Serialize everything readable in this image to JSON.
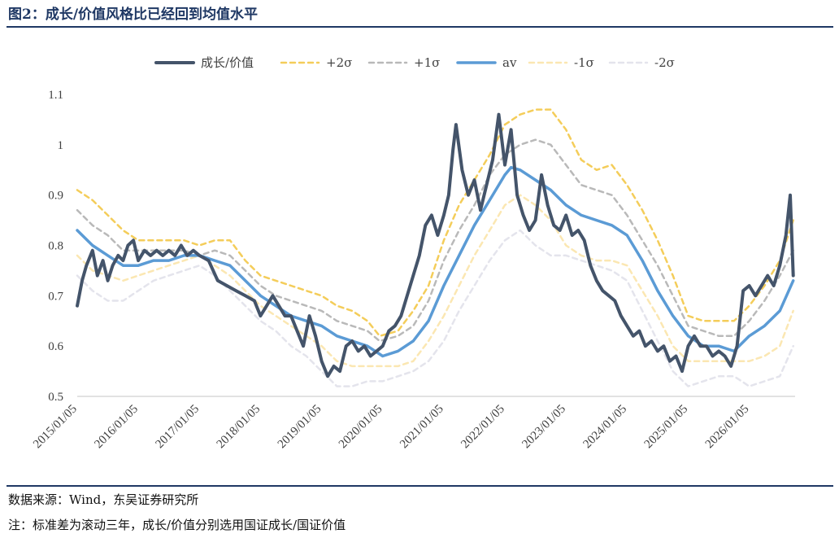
{
  "figure": {
    "title": "图2：成长/价值风格比已经回到均值水平",
    "source_note": "数据来源：Wind，东吴证券研究所",
    "footnote": "注：标准差为滚动三年，成长/价值分别选用国证成长/国证价值"
  },
  "chart_data": {
    "type": "line",
    "title": "",
    "xlabel": "",
    "ylabel": "",
    "ylim": [
      0.5,
      1.1
    ],
    "yticks": [
      "0.5",
      "0.6",
      "0.7",
      "0.8",
      "0.9",
      "1",
      "1.1"
    ],
    "xlim": [
      2015.0,
      2026.75
    ],
    "xticks": [
      {
        "label": "2015/01/05",
        "t": 2015.0
      },
      {
        "label": "2016/01/05",
        "t": 2016.0
      },
      {
        "label": "2017/01/05",
        "t": 2017.0
      },
      {
        "label": "2018/01/05",
        "t": 2018.0
      },
      {
        "label": "2019/01/05",
        "t": 2019.0
      },
      {
        "label": "2020/01/05",
        "t": 2020.0
      },
      {
        "label": "2021/01/05",
        "t": 2021.0
      },
      {
        "label": "2022/01/05",
        "t": 2022.0
      },
      {
        "label": "2023/01/05",
        "t": 2023.0
      },
      {
        "label": "2024/01/05",
        "t": 2024.0
      },
      {
        "label": "2025/01/05",
        "t": 2025.0
      },
      {
        "label": "2026/01/05",
        "t": 2026.0
      }
    ],
    "grid": false,
    "legend_position": "top",
    "series": [
      {
        "name": "成长/价值",
        "color": "#44546a",
        "dash": "solid",
        "width": 4,
        "x": [
          2015.0,
          2015.08,
          2015.15,
          2015.25,
          2015.33,
          2015.42,
          2015.5,
          2015.58,
          2015.67,
          2015.75,
          2015.83,
          2015.92,
          2016.0,
          2016.1,
          2016.2,
          2016.3,
          2016.4,
          2016.5,
          2016.6,
          2016.7,
          2016.8,
          2016.9,
          2017.0,
          2017.15,
          2017.3,
          2017.45,
          2017.6,
          2017.75,
          2017.9,
          2018.0,
          2018.1,
          2018.2,
          2018.3,
          2018.4,
          2018.5,
          2018.6,
          2018.7,
          2018.8,
          2018.9,
          2019.0,
          2019.1,
          2019.2,
          2019.3,
          2019.4,
          2019.5,
          2019.6,
          2019.7,
          2019.8,
          2019.9,
          2020.0,
          2020.1,
          2020.2,
          2020.3,
          2020.4,
          2020.5,
          2020.6,
          2020.7,
          2020.8,
          2020.9,
          2021.0,
          2021.08,
          2021.15,
          2021.2,
          2021.3,
          2021.4,
          2021.5,
          2021.6,
          2021.7,
          2021.8,
          2021.9,
          2022.0,
          2022.1,
          2022.2,
          2022.3,
          2022.4,
          2022.5,
          2022.6,
          2022.7,
          2022.8,
          2022.9,
          2023.0,
          2023.1,
          2023.2,
          2023.3,
          2023.4,
          2023.5,
          2023.6,
          2023.7,
          2023.8,
          2023.9,
          2024.0,
          2024.1,
          2024.2,
          2024.3,
          2024.4,
          2024.5,
          2024.6,
          2024.7,
          2024.8,
          2024.9,
          2025.0,
          2025.1,
          2025.2,
          2025.3,
          2025.4,
          2025.5,
          2025.6,
          2025.7,
          2025.8,
          2025.9,
          2026.0,
          2026.1,
          2026.2,
          2026.3,
          2026.4,
          2026.5,
          2026.6,
          2026.67,
          2026.72
        ],
        "y": [
          0.68,
          0.73,
          0.76,
          0.79,
          0.74,
          0.77,
          0.73,
          0.76,
          0.78,
          0.77,
          0.8,
          0.81,
          0.77,
          0.79,
          0.78,
          0.79,
          0.78,
          0.79,
          0.78,
          0.8,
          0.78,
          0.79,
          0.78,
          0.77,
          0.73,
          0.72,
          0.71,
          0.7,
          0.69,
          0.66,
          0.68,
          0.7,
          0.68,
          0.66,
          0.66,
          0.63,
          0.6,
          0.66,
          0.62,
          0.57,
          0.54,
          0.56,
          0.55,
          0.6,
          0.61,
          0.59,
          0.6,
          0.58,
          0.59,
          0.6,
          0.63,
          0.64,
          0.66,
          0.7,
          0.74,
          0.78,
          0.84,
          0.86,
          0.82,
          0.86,
          0.9,
          0.99,
          1.04,
          0.95,
          0.9,
          0.93,
          0.87,
          0.92,
          0.97,
          1.06,
          0.96,
          1.03,
          0.9,
          0.86,
          0.83,
          0.85,
          0.94,
          0.88,
          0.84,
          0.83,
          0.86,
          0.82,
          0.83,
          0.81,
          0.76,
          0.73,
          0.71,
          0.7,
          0.69,
          0.66,
          0.64,
          0.62,
          0.63,
          0.6,
          0.61,
          0.59,
          0.6,
          0.57,
          0.58,
          0.55,
          0.6,
          0.62,
          0.6,
          0.6,
          0.58,
          0.59,
          0.58,
          0.56,
          0.6,
          0.71,
          0.72,
          0.7,
          0.72,
          0.74,
          0.72,
          0.76,
          0.82,
          0.9,
          0.74
        ]
      },
      {
        "name": "+2σ",
        "color": "#f4cd5a",
        "dash": "6,5",
        "width": 2.5,
        "x": [
          2015.0,
          2015.25,
          2015.5,
          2015.75,
          2016.0,
          2016.25,
          2016.5,
          2016.75,
          2017.0,
          2017.25,
          2017.5,
          2017.75,
          2018.0,
          2018.25,
          2018.5,
          2018.75,
          2019.0,
          2019.25,
          2019.5,
          2019.75,
          2019.95,
          2020.25,
          2020.5,
          2020.75,
          2021.0,
          2021.25,
          2021.5,
          2021.75,
          2022.0,
          2022.25,
          2022.5,
          2022.75,
          2023.0,
          2023.25,
          2023.5,
          2023.75,
          2024.0,
          2024.25,
          2024.5,
          2024.75,
          2025.0,
          2025.25,
          2025.5,
          2025.75,
          2026.0,
          2026.25,
          2026.5,
          2026.72
        ],
        "y": [
          0.91,
          0.89,
          0.86,
          0.83,
          0.81,
          0.81,
          0.81,
          0.81,
          0.8,
          0.81,
          0.81,
          0.77,
          0.74,
          0.73,
          0.72,
          0.71,
          0.7,
          0.68,
          0.67,
          0.65,
          0.62,
          0.63,
          0.67,
          0.72,
          0.81,
          0.88,
          0.93,
          0.98,
          1.04,
          1.06,
          1.07,
          1.07,
          1.03,
          0.97,
          0.95,
          0.96,
          0.92,
          0.87,
          0.81,
          0.74,
          0.66,
          0.65,
          0.65,
          0.65,
          0.68,
          0.72,
          0.77,
          0.85
        ]
      },
      {
        "name": "+1σ",
        "color": "#b9b9b9",
        "dash": "6,5",
        "width": 2.5,
        "x": [
          2015.0,
          2015.25,
          2015.5,
          2015.75,
          2016.0,
          2016.25,
          2016.5,
          2016.75,
          2017.0,
          2017.25,
          2017.5,
          2017.75,
          2018.0,
          2018.25,
          2018.5,
          2018.75,
          2019.0,
          2019.25,
          2019.5,
          2019.75,
          2019.95,
          2020.25,
          2020.5,
          2020.75,
          2021.0,
          2021.25,
          2021.5,
          2021.75,
          2022.0,
          2022.25,
          2022.5,
          2022.75,
          2023.0,
          2023.25,
          2023.5,
          2023.75,
          2024.0,
          2024.25,
          2024.5,
          2024.75,
          2025.0,
          2025.25,
          2025.5,
          2025.75,
          2026.0,
          2026.25,
          2026.5,
          2026.72
        ],
        "y": [
          0.87,
          0.84,
          0.82,
          0.79,
          0.79,
          0.79,
          0.79,
          0.79,
          0.78,
          0.79,
          0.78,
          0.75,
          0.72,
          0.7,
          0.69,
          0.68,
          0.67,
          0.65,
          0.64,
          0.63,
          0.61,
          0.62,
          0.64,
          0.69,
          0.77,
          0.83,
          0.88,
          0.94,
          0.98,
          1.0,
          1.01,
          1.0,
          0.96,
          0.92,
          0.91,
          0.9,
          0.86,
          0.81,
          0.76,
          0.7,
          0.64,
          0.63,
          0.62,
          0.62,
          0.65,
          0.69,
          0.74,
          0.79
        ]
      },
      {
        "name": "av",
        "color": "#5b9bd5",
        "dash": "solid",
        "width": 3.5,
        "x": [
          2015.0,
          2015.25,
          2015.5,
          2015.75,
          2016.0,
          2016.25,
          2016.5,
          2016.75,
          2017.0,
          2017.25,
          2017.5,
          2017.75,
          2018.0,
          2018.25,
          2018.5,
          2018.75,
          2019.0,
          2019.25,
          2019.5,
          2019.75,
          2020.0,
          2020.25,
          2020.5,
          2020.75,
          2021.0,
          2021.25,
          2021.5,
          2021.75,
          2022.0,
          2022.1,
          2022.25,
          2022.5,
          2022.75,
          2023.0,
          2023.25,
          2023.5,
          2023.75,
          2024.0,
          2024.25,
          2024.5,
          2024.75,
          2025.0,
          2025.25,
          2025.5,
          2025.75,
          2026.0,
          2026.25,
          2026.5,
          2026.72
        ],
        "y": [
          0.83,
          0.8,
          0.78,
          0.76,
          0.76,
          0.77,
          0.77,
          0.78,
          0.78,
          0.77,
          0.76,
          0.73,
          0.7,
          0.68,
          0.66,
          0.65,
          0.64,
          0.62,
          0.61,
          0.6,
          0.58,
          0.59,
          0.61,
          0.65,
          0.72,
          0.78,
          0.84,
          0.89,
          0.94,
          0.955,
          0.95,
          0.93,
          0.91,
          0.88,
          0.86,
          0.85,
          0.84,
          0.82,
          0.77,
          0.71,
          0.66,
          0.62,
          0.6,
          0.6,
          0.59,
          0.62,
          0.64,
          0.67,
          0.73
        ]
      },
      {
        "name": "-1σ",
        "color": "#fbe7b2",
        "dash": "6,5",
        "width": 2.5,
        "x": [
          2015.0,
          2015.25,
          2015.5,
          2015.75,
          2016.0,
          2016.25,
          2016.5,
          2016.75,
          2017.0,
          2017.25,
          2017.5,
          2017.75,
          2018.0,
          2018.25,
          2018.5,
          2018.75,
          2019.0,
          2019.25,
          2019.5,
          2019.75,
          2020.0,
          2020.25,
          2020.5,
          2020.75,
          2021.0,
          2021.25,
          2021.5,
          2021.75,
          2022.0,
          2022.25,
          2022.5,
          2022.75,
          2023.0,
          2023.25,
          2023.5,
          2023.75,
          2024.0,
          2024.25,
          2024.5,
          2024.75,
          2025.0,
          2025.25,
          2025.5,
          2025.75,
          2026.0,
          2026.25,
          2026.5,
          2026.72
        ],
        "y": [
          0.78,
          0.75,
          0.74,
          0.73,
          0.74,
          0.75,
          0.76,
          0.77,
          0.78,
          0.76,
          0.74,
          0.71,
          0.68,
          0.66,
          0.64,
          0.62,
          0.6,
          0.57,
          0.56,
          0.56,
          0.56,
          0.56,
          0.57,
          0.61,
          0.66,
          0.72,
          0.78,
          0.83,
          0.88,
          0.9,
          0.88,
          0.85,
          0.8,
          0.78,
          0.77,
          0.77,
          0.76,
          0.71,
          0.66,
          0.6,
          0.57,
          0.57,
          0.57,
          0.57,
          0.57,
          0.58,
          0.6,
          0.67
        ]
      },
      {
        "name": "-2σ",
        "color": "#e4e4ec",
        "dash": "6,5",
        "width": 2.5,
        "x": [
          2015.0,
          2015.25,
          2015.5,
          2015.75,
          2016.0,
          2016.25,
          2016.5,
          2016.75,
          2017.0,
          2017.25,
          2017.5,
          2017.75,
          2018.0,
          2018.25,
          2018.5,
          2018.75,
          2019.0,
          2019.25,
          2019.5,
          2019.75,
          2020.0,
          2020.25,
          2020.5,
          2020.75,
          2021.0,
          2021.25,
          2021.5,
          2021.75,
          2022.0,
          2022.25,
          2022.5,
          2022.75,
          2023.0,
          2023.25,
          2023.5,
          2023.75,
          2024.0,
          2024.25,
          2024.5,
          2024.75,
          2025.0,
          2025.25,
          2025.5,
          2025.75,
          2026.0,
          2026.25,
          2026.5,
          2026.72
        ],
        "y": [
          0.74,
          0.71,
          0.69,
          0.69,
          0.71,
          0.73,
          0.74,
          0.75,
          0.76,
          0.74,
          0.71,
          0.68,
          0.65,
          0.63,
          0.6,
          0.58,
          0.55,
          0.52,
          0.52,
          0.53,
          0.53,
          0.54,
          0.55,
          0.57,
          0.61,
          0.67,
          0.72,
          0.77,
          0.81,
          0.83,
          0.8,
          0.78,
          0.78,
          0.77,
          0.76,
          0.75,
          0.73,
          0.67,
          0.61,
          0.55,
          0.52,
          0.53,
          0.54,
          0.54,
          0.52,
          0.53,
          0.54,
          0.6
        ]
      }
    ]
  }
}
